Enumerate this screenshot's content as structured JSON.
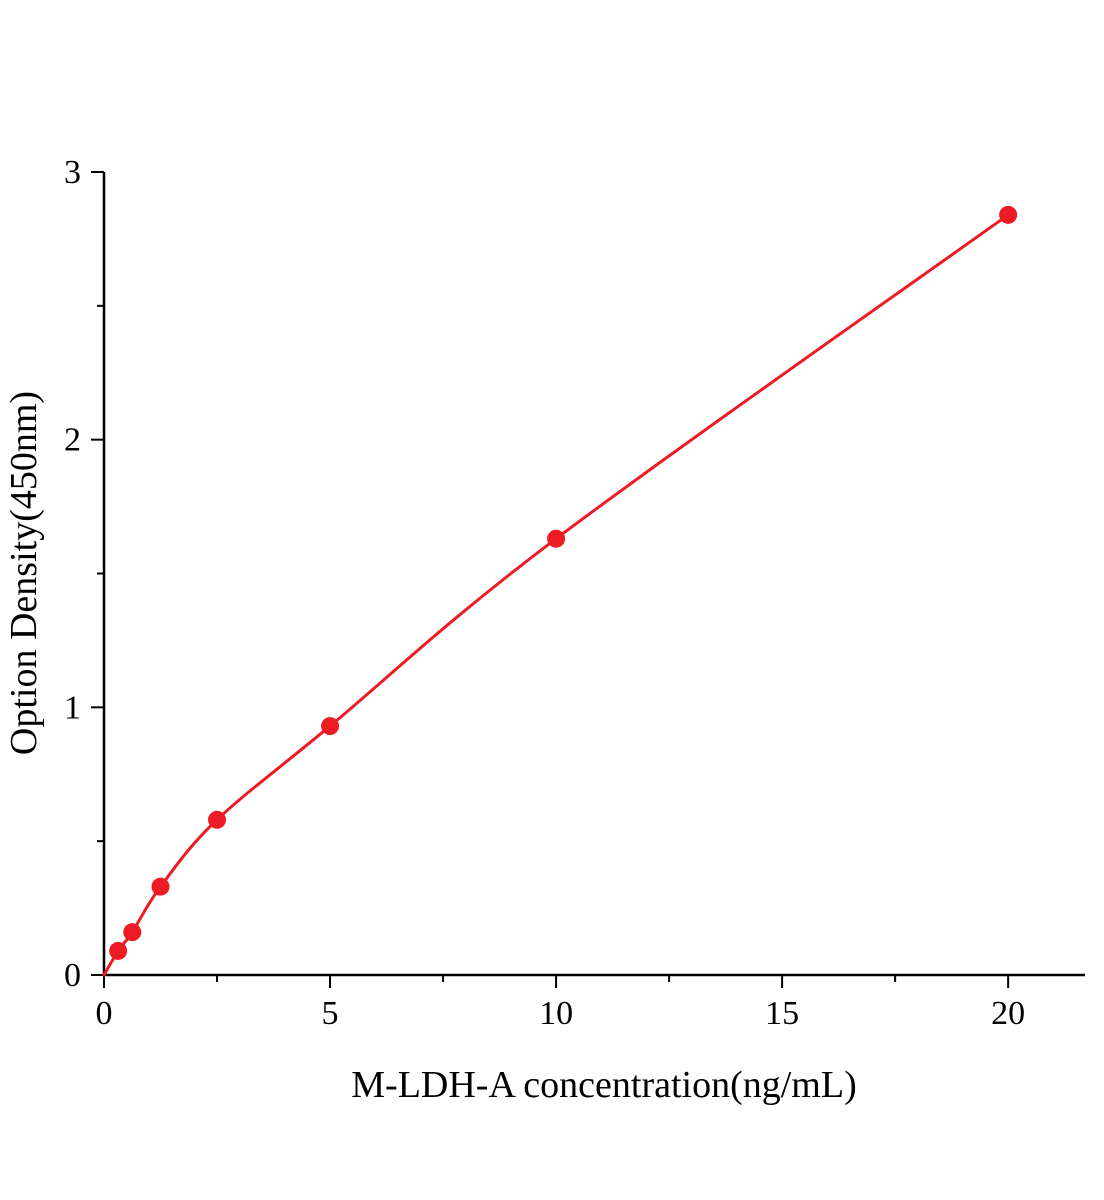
{
  "figure": {
    "background": "#ffffff"
  },
  "chart_data": {
    "type": "scatter",
    "title": "",
    "xlabel": "M-LDH-A concentration(ng/mL)",
    "ylabel": "Option Density(450nm)",
    "x": [
      0.313,
      0.625,
      1.25,
      2.5,
      5,
      10,
      20
    ],
    "y": [
      0.09,
      0.16,
      0.33,
      0.58,
      0.93,
      1.63,
      2.84
    ],
    "curve_start_x": 0,
    "curve_start_y": 0,
    "xlim": [
      0,
      21.7
    ],
    "ylim": [
      0,
      3
    ],
    "x_ticks": [
      0,
      5,
      10,
      15,
      20
    ],
    "y_ticks": [
      0,
      1,
      2,
      3
    ],
    "x_minor_step": 2.5,
    "y_minor_step": 0.5,
    "grid": false,
    "legend": "none",
    "line_color": "#ed1c24",
    "marker_color": "#ed1c24",
    "axis_color": "#000000",
    "marker_radius": 9,
    "line_width": 3
  }
}
